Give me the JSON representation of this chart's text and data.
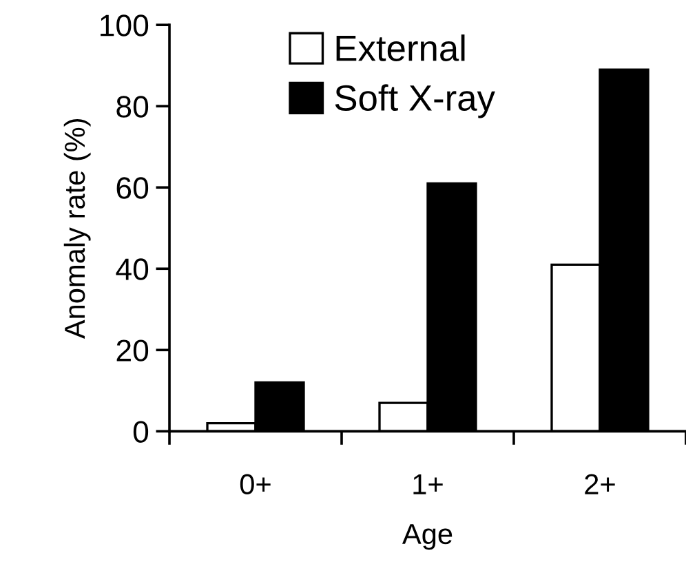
{
  "chart_data": {
    "type": "bar",
    "xlabel": "Age",
    "ylabel": "Anomaly rate (%)",
    "categories": [
      "0+",
      "1+",
      "2+"
    ],
    "series": [
      {
        "name": "External",
        "color": "#ffffff",
        "values": [
          2,
          7,
          41
        ]
      },
      {
        "name": "Soft X-ray",
        "color": "#000000",
        "values": [
          12,
          61,
          89
        ]
      }
    ],
    "ylim": [
      0,
      100
    ],
    "yticks": [
      0,
      20,
      40,
      60,
      80,
      100
    ],
    "grid": false,
    "legend": "top left"
  }
}
